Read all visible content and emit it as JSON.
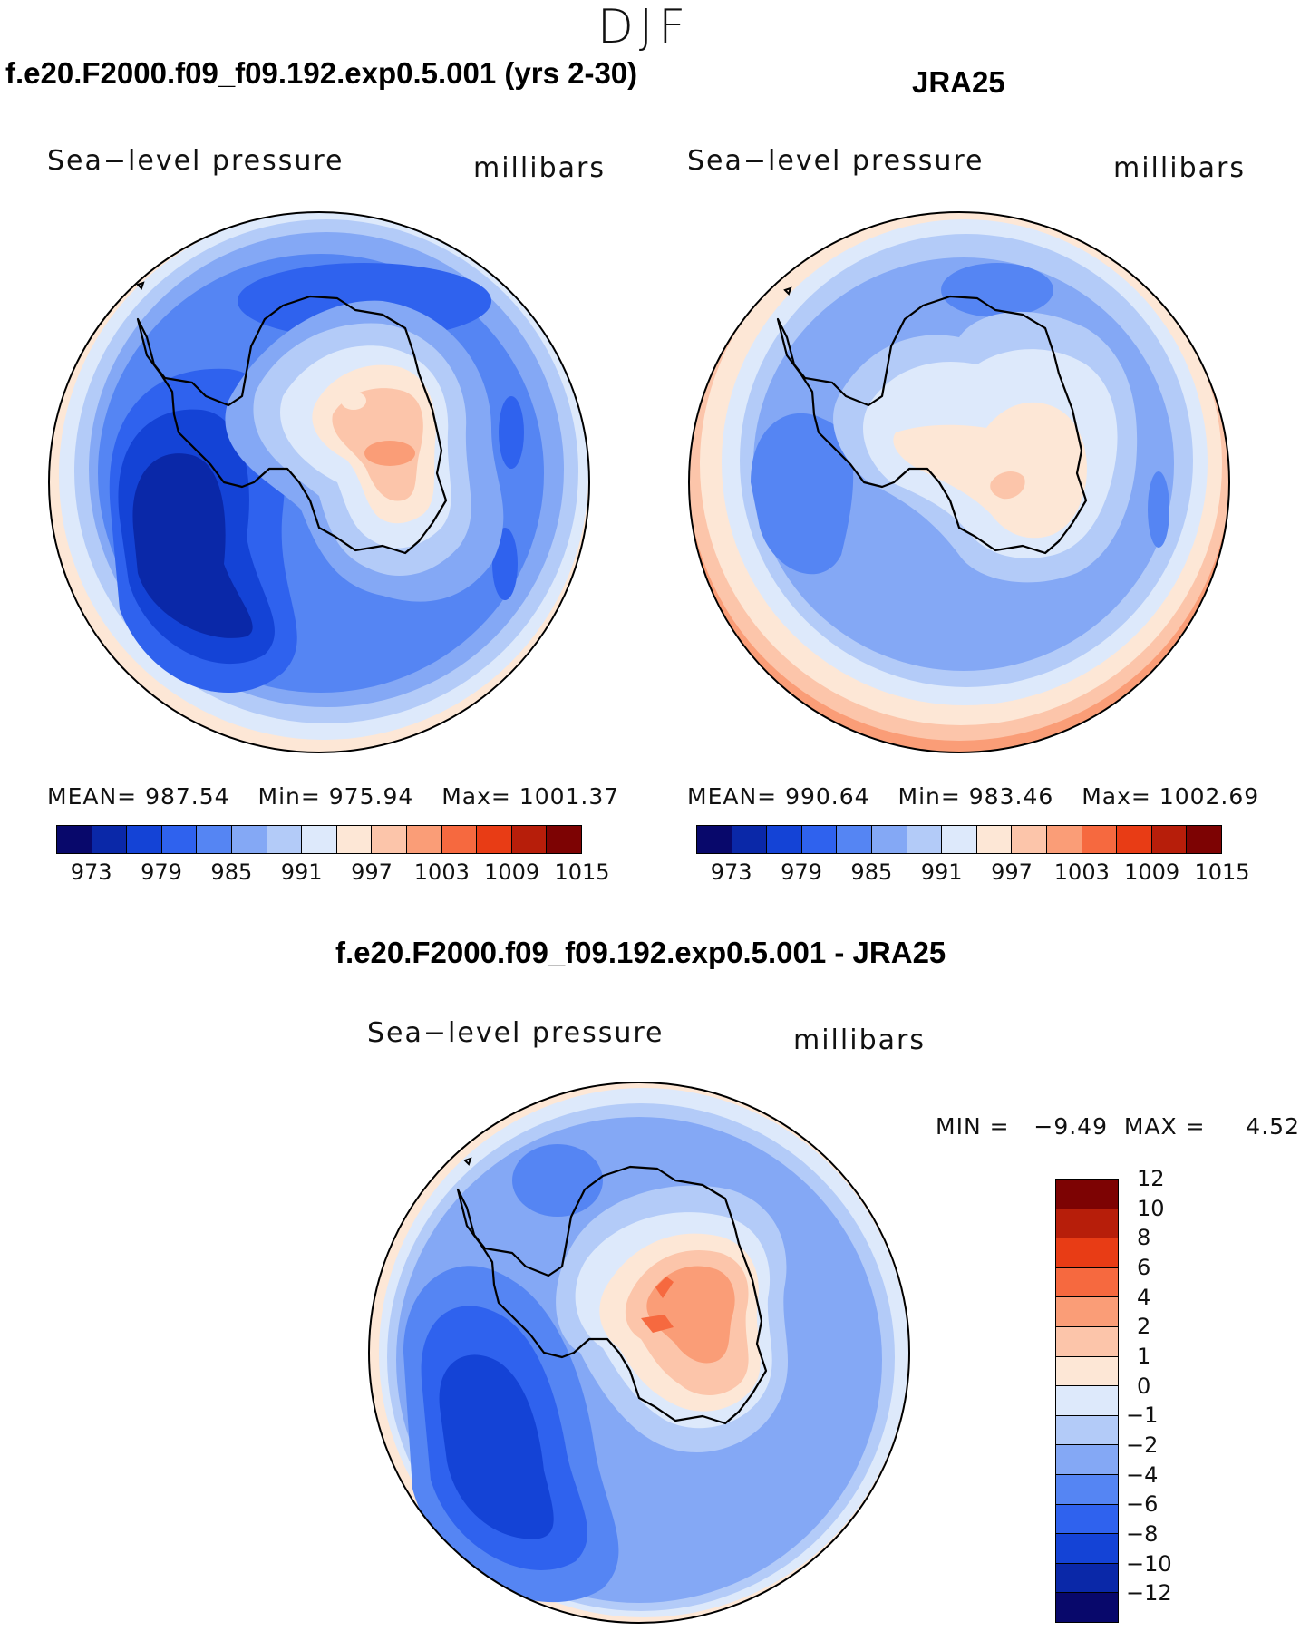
{
  "season": "DJF",
  "panels": {
    "model": {
      "title": "f.e20.F2000.f09_f09.192.exp0.5.001 (yrs 2-30)",
      "field": "Sea−level pressure",
      "units": "millibars",
      "stats": {
        "mean_label": "MEAN=",
        "mean": "987.54",
        "min_label": "Min=",
        "min": "975.94",
        "max_label": "Max=",
        "max": "1001.37"
      }
    },
    "obs": {
      "title": "JRA25",
      "field": "Sea−level pressure",
      "units": "millibars",
      "stats": {
        "mean_label": "MEAN=",
        "mean": "990.64",
        "min_label": "Min=",
        "min": "983.46",
        "max_label": "Max=",
        "max": "1002.69"
      }
    },
    "diff": {
      "title": "f.e20.F2000.f09_f09.192.exp0.5.001 - JRA25",
      "field": "Sea−level pressure",
      "units": "millibars",
      "minmax": "MIN =   −9.49  MAX =     4.52"
    }
  },
  "colorbar_abs": {
    "colors": [
      "#08086b",
      "#0a28a8",
      "#1443d6",
      "#2f62ee",
      "#5585f3",
      "#84a8f5",
      "#b3cbf8",
      "#dde9fb",
      "#fde7d6",
      "#fcc5aa",
      "#fa9d77",
      "#f6693f",
      "#e83c15",
      "#b71e0a",
      "#7d0303"
    ],
    "ticks": [
      "973",
      "979",
      "985",
      "991",
      "997",
      "1003",
      "1009",
      "1015"
    ]
  },
  "colorbar_diff": {
    "colors": [
      "#08086b",
      "#0a28a8",
      "#1443d6",
      "#2f62ee",
      "#5585f3",
      "#84a8f5",
      "#b3cbf8",
      "#dde9fb",
      "#fde7d6",
      "#fcc5aa",
      "#fa9d77",
      "#f6693f",
      "#e83c15",
      "#b71e0a",
      "#7d0303"
    ],
    "ticks": [
      "−12",
      "−10",
      "−8",
      "−6",
      "−4",
      "−2",
      "−1",
      "0",
      "1",
      "2",
      "4",
      "6",
      "8",
      "10",
      "12"
    ]
  }
}
